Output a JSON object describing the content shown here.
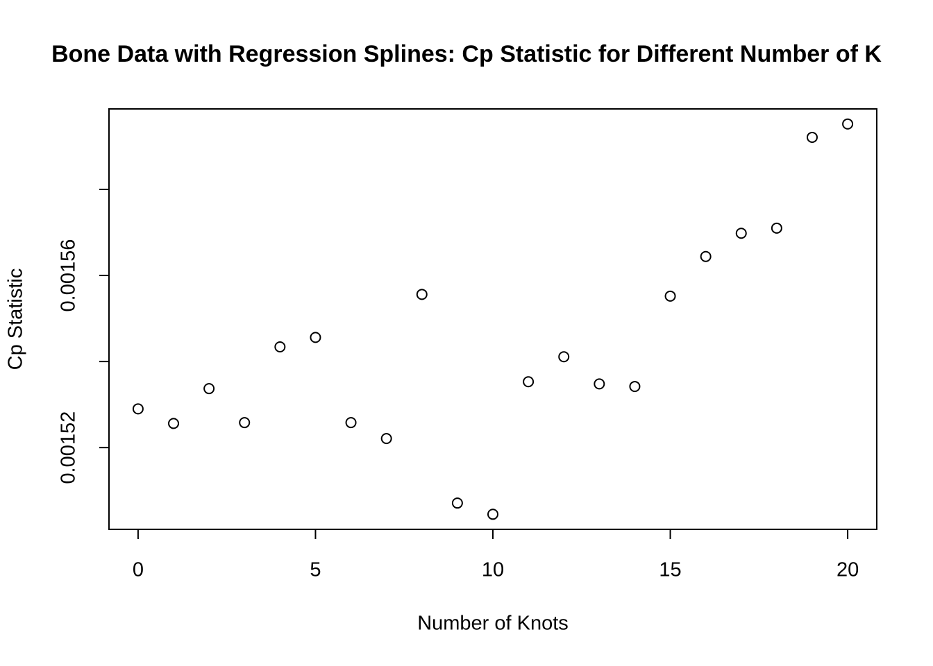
{
  "chart_data": {
    "type": "scatter",
    "title": "Bone Data with Regression Splines: Cp Statistic for Different Number of K",
    "x_label": "Number of Knots",
    "y_label": "Cp Statistic",
    "x": [
      0,
      1,
      2,
      3,
      4,
      5,
      6,
      7,
      8,
      9,
      10,
      11,
      12,
      13,
      14,
      15,
      16,
      17,
      18,
      19,
      20
    ],
    "series": [
      {
        "color": "#000000",
        "values": [
          0.001529,
          0.0015256,
          0.0015337,
          0.0015258,
          0.0015434,
          0.0015456,
          0.0015258,
          0.0015221,
          0.0015556,
          0.0015071,
          0.0015045,
          0.0015353,
          0.0015411,
          0.0015348,
          0.0015342,
          0.0015552,
          0.0015644,
          0.0015698,
          0.001571,
          0.0015921,
          0.0015952
        ]
      }
    ],
    "xlim": [
      -0.82,
      20.82
    ],
    "ylim": [
      0.001501,
      0.0015987
    ],
    "xticks": [
      0,
      5,
      10,
      15,
      20
    ],
    "yticks": [
      0.00152,
      {
        "value": 0.00154,
        "label": null
      },
      0.00156,
      {
        "value": 0.00158,
        "label": null
      }
    ],
    "grid": false
  }
}
